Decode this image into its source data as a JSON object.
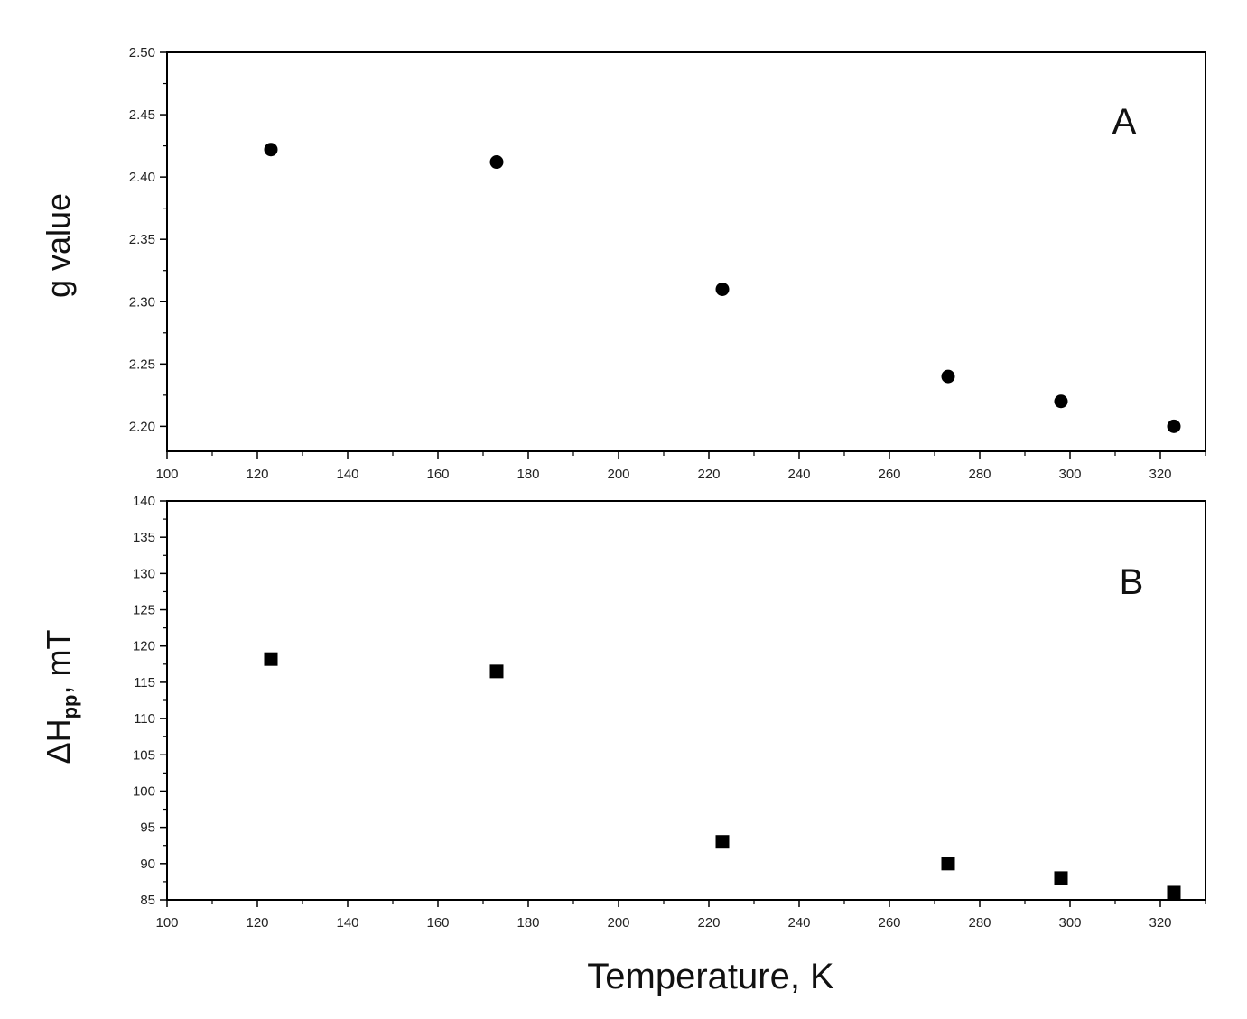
{
  "chart_data": [
    {
      "type": "scatter",
      "panel_label": "A",
      "xlabel": "",
      "ylabel": "g value",
      "xlim": [
        100,
        330
      ],
      "ylim": [
        2.18,
        2.5
      ],
      "xticks": [
        "100",
        "120",
        "140",
        "160",
        "180",
        "200",
        "220",
        "240",
        "260",
        "280",
        "300",
        "320"
      ],
      "yticks": [
        "2.20",
        "2.25",
        "2.30",
        "2.35",
        "2.40",
        "2.45",
        "2.50"
      ],
      "marker": "circle",
      "grid": false,
      "series": [
        {
          "x": [
            123,
            173,
            223,
            273,
            298,
            323
          ],
          "y": [
            2.422,
            2.412,
            2.31,
            2.24,
            2.22,
            2.2
          ]
        }
      ]
    },
    {
      "type": "scatter",
      "panel_label": "B",
      "xlabel": "Temperature, K",
      "ylabel_main": "ΔH",
      "ylabel_sub": "pp",
      "ylabel_tail": ", mT",
      "xlim": [
        100,
        330
      ],
      "ylim": [
        85,
        140
      ],
      "xticks": [
        "100",
        "120",
        "140",
        "160",
        "180",
        "200",
        "220",
        "240",
        "260",
        "280",
        "300",
        "320"
      ],
      "yticks": [
        "85",
        "90",
        "95",
        "100",
        "105",
        "110",
        "115",
        "120",
        "125",
        "130",
        "135",
        "140"
      ],
      "marker": "square",
      "grid": false,
      "series": [
        {
          "x": [
            123,
            173,
            223,
            273,
            298,
            323
          ],
          "y": [
            118.2,
            116.5,
            93,
            90,
            88,
            86
          ]
        }
      ]
    }
  ]
}
